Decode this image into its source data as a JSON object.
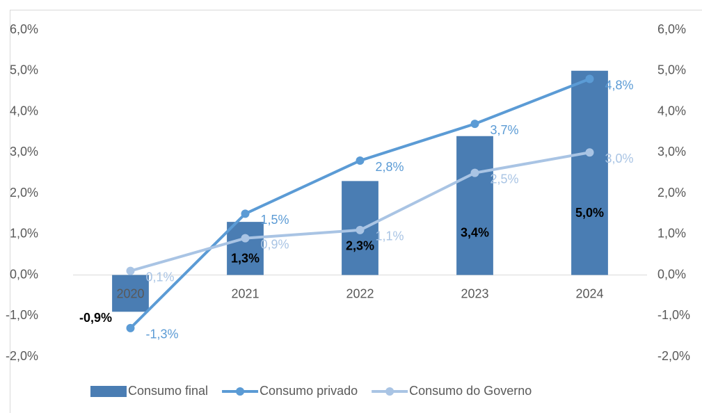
{
  "chart_data": {
    "type": "bar",
    "categories": [
      "2020",
      "2021",
      "2022",
      "2023",
      "2024"
    ],
    "series": [
      {
        "name": "Consumo final",
        "type": "bar",
        "color": "#4a7db3",
        "values": [
          -0.9,
          1.3,
          2.3,
          3.4,
          5.0
        ],
        "value_labels": [
          "-0,9%",
          "1,3%",
          "2,3%",
          "3,4%",
          "5,0%"
        ],
        "label_color": "#000000"
      },
      {
        "name": "Consumo privado",
        "type": "line",
        "axis": "y2",
        "color": "#5b9bd5",
        "values": [
          -1.3,
          1.5,
          2.8,
          3.7,
          4.8
        ],
        "value_labels": [
          "-1,3%",
          "1,5%",
          "2,8%",
          "3,7%",
          "4,8%"
        ]
      },
      {
        "name": "Consumo do Governo",
        "type": "line",
        "axis": "y2",
        "color": "#a9c4e4",
        "values": [
          0.1,
          0.9,
          1.1,
          2.5,
          3.0
        ],
        "value_labels": [
          "0,1%",
          "0,9%",
          "1,1%",
          "2,5%",
          "3,0%"
        ]
      }
    ],
    "ylim": [
      -2,
      6
    ],
    "yticks": [
      {
        "value": -2,
        "label": "-2,0%"
      },
      {
        "value": -1,
        "label": "-1,0%"
      },
      {
        "value": 0,
        "label": "0,0%"
      },
      {
        "value": 1,
        "label": "1,0%"
      },
      {
        "value": 2,
        "label": "2,0%"
      },
      {
        "value": 3,
        "label": "3,0%"
      },
      {
        "value": 4,
        "label": "4,0%"
      },
      {
        "value": 5,
        "label": "5,0%"
      },
      {
        "value": 6,
        "label": "6,0%"
      }
    ],
    "y2lim": [
      -2,
      6
    ],
    "y2ticks": [
      {
        "value": -2,
        "label": "-2,0%"
      },
      {
        "value": -1,
        "label": "-1,0%"
      },
      {
        "value": 0,
        "label": "0,0%"
      },
      {
        "value": 1,
        "label": "1,0%"
      },
      {
        "value": 2,
        "label": "2,0%"
      },
      {
        "value": 3,
        "label": "3,0%"
      },
      {
        "value": 4,
        "label": "4,0%"
      },
      {
        "value": 5,
        "label": "5,0%"
      },
      {
        "value": 6,
        "label": "6,0%"
      }
    ],
    "grid": false,
    "legend": "bottom"
  }
}
